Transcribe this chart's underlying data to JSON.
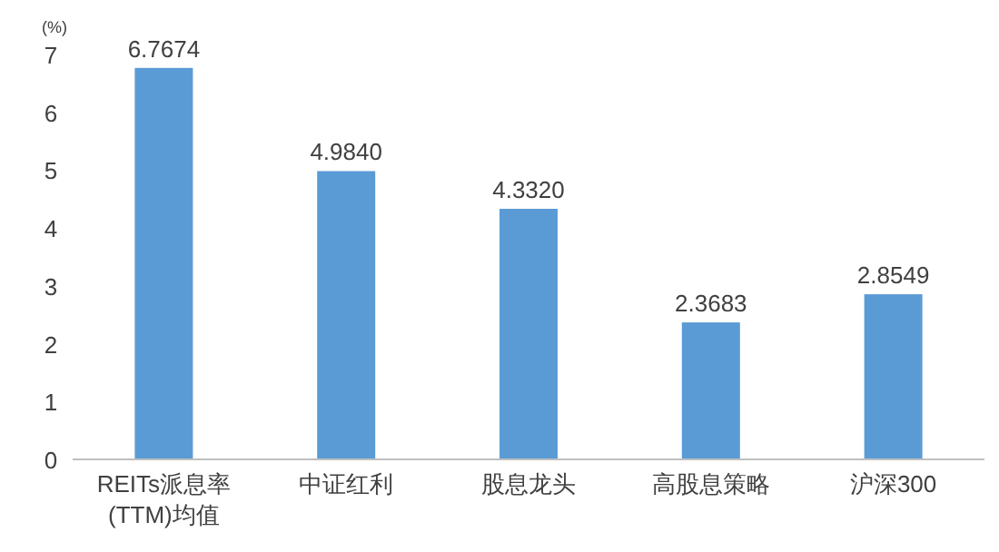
{
  "chart_data": {
    "type": "bar",
    "ylabel": "(%)",
    "categories": [
      "REITs派息率\n(TTM)均值",
      "中证红利",
      "股息龙头",
      "高股息策略",
      "沪深300"
    ],
    "values": [
      6.7674,
      4.984,
      4.332,
      2.3683,
      2.8549
    ],
    "value_labels": [
      "6.7674",
      "4.9840",
      "4.3320",
      "2.3683",
      "2.8549"
    ],
    "color": "#5b9bd5",
    "ylim": [
      0,
      7
    ],
    "yticks": [
      0,
      1,
      2,
      3,
      4,
      5,
      6,
      7
    ],
    "grid": false
  }
}
